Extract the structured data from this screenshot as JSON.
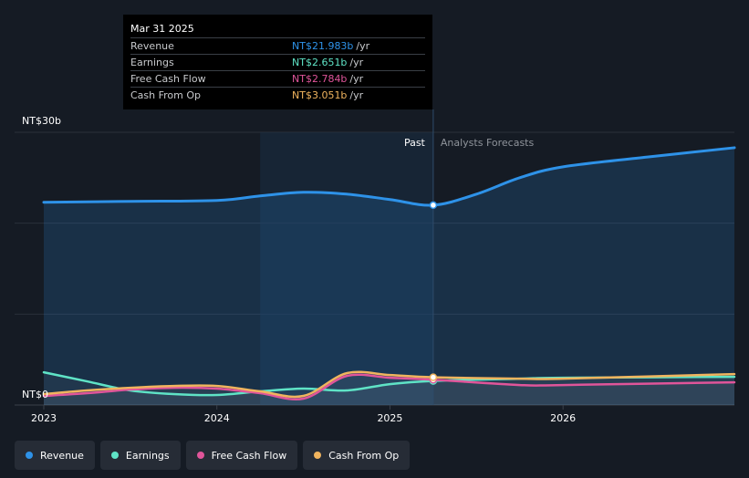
{
  "tooltip": {
    "date": "Mar 31 2025",
    "rows": [
      {
        "label": "Revenue",
        "value": "NT$21.983b",
        "unit": "/yr",
        "color": "#2e92e8"
      },
      {
        "label": "Earnings",
        "value": "NT$2.651b",
        "unit": "/yr",
        "color": "#5fe3c6"
      },
      {
        "label": "Free Cash Flow",
        "value": "NT$2.784b",
        "unit": "/yr",
        "color": "#e0559a"
      },
      {
        "label": "Cash From Op",
        "value": "NT$3.051b",
        "unit": "/yr",
        "color": "#f0b45e"
      }
    ]
  },
  "legend": [
    {
      "label": "Revenue",
      "color": "#2e92e8"
    },
    {
      "label": "Earnings",
      "color": "#5fe3c6"
    },
    {
      "label": "Free Cash Flow",
      "color": "#e0559a"
    },
    {
      "label": "Cash From Op",
      "color": "#f0b45e"
    }
  ],
  "chart_data": {
    "type": "line",
    "y_top_label": "NT$30b",
    "y_bottom_label": "NT$0",
    "ylim": [
      0,
      30
    ],
    "xlim": [
      2023.0,
      2026.99
    ],
    "x_ticks": [
      {
        "value": 2023,
        "label": "2023"
      },
      {
        "value": 2024,
        "label": "2024"
      },
      {
        "value": 2025,
        "label": "2025"
      },
      {
        "value": 2026,
        "label": "2026"
      }
    ],
    "past_label": "Past",
    "forecast_label": "Analysts Forecasts",
    "past_start": 2024.25,
    "divider_x": 2025.25,
    "grid": true,
    "series": [
      {
        "name": "Revenue",
        "color": "#2e92e8",
        "fill": true,
        "x": [
          2023.0,
          2023.5,
          2024.0,
          2024.25,
          2024.5,
          2024.75,
          2025.0,
          2025.25,
          2025.5,
          2025.75,
          2026.0,
          2026.5,
          2026.99
        ],
        "y": [
          22.3,
          22.4,
          22.5,
          23.0,
          23.4,
          23.2,
          22.6,
          21.983,
          23.2,
          25.0,
          26.2,
          27.3,
          28.3
        ]
      },
      {
        "name": "Earnings",
        "color": "#5fe3c6",
        "fill": false,
        "x": [
          2023.0,
          2023.25,
          2023.5,
          2023.75,
          2024.0,
          2024.25,
          2024.5,
          2024.75,
          2025.0,
          2025.25,
          2025.75,
          2026.0,
          2026.99
        ],
        "y": [
          3.6,
          2.6,
          1.6,
          1.2,
          1.1,
          1.5,
          1.8,
          1.6,
          2.3,
          2.651,
          2.9,
          3.0,
          3.1
        ]
      },
      {
        "name": "Free Cash Flow",
        "color": "#e0559a",
        "fill": false,
        "x": [
          2023.0,
          2023.25,
          2023.5,
          2023.75,
          2024.0,
          2024.25,
          2024.5,
          2024.75,
          2025.0,
          2025.25,
          2025.75,
          2026.0,
          2026.99
        ],
        "y": [
          1.0,
          1.3,
          1.7,
          1.9,
          1.8,
          1.3,
          0.7,
          3.2,
          3.0,
          2.784,
          2.2,
          2.2,
          2.5
        ]
      },
      {
        "name": "Cash From Op",
        "color": "#f0b45e",
        "fill": false,
        "x": [
          2023.0,
          2023.25,
          2023.5,
          2023.75,
          2024.0,
          2024.25,
          2024.5,
          2024.75,
          2025.0,
          2025.25,
          2025.75,
          2026.0,
          2026.99
        ],
        "y": [
          1.2,
          1.6,
          1.9,
          2.1,
          2.1,
          1.5,
          1.0,
          3.5,
          3.3,
          3.051,
          2.9,
          2.9,
          3.4
        ]
      }
    ]
  }
}
